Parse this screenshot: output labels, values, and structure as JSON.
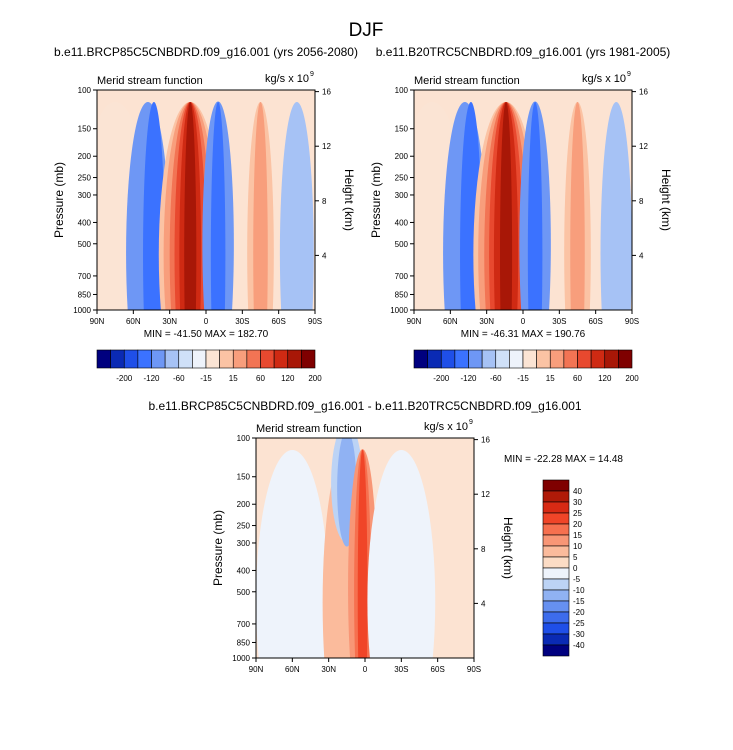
{
  "figure": {
    "title": "DJF"
  },
  "chart_data": [
    {
      "type": "heatmap",
      "id": "panel-future",
      "title": "b.e11.BRCP85C5CNBDRD.f09_g16.001 (yrs 2056-2080)",
      "subtitle": "Merid stream function",
      "units_base": "kg/s x 10",
      "units_exp": "9",
      "ylabel": "Pressure (mb)",
      "ylabel_right": "Height (km)",
      "x_ticks": [
        "90N",
        "60N",
        "30N",
        "0",
        "30S",
        "60S",
        "90S"
      ],
      "y_ticks": [
        100,
        150,
        200,
        250,
        300,
        400,
        500,
        700,
        850,
        1000
      ],
      "y_ticks_right": [
        16,
        12,
        8,
        4
      ],
      "ylim": [
        1000,
        100
      ],
      "stats": "MIN = -41.50  MAX = 182.70",
      "min": -41.5,
      "max": 182.7,
      "cells": [
        {
          "lat": 75,
          "half": 30,
          "p": 550,
          "level": 8
        },
        {
          "lat": 48,
          "half": 18,
          "p": 550,
          "level": 4
        },
        {
          "lat": 43,
          "half": 9,
          "p": 560,
          "level": 3
        },
        {
          "lat": 13,
          "half": 26,
          "p": 560,
          "level": 9
        },
        {
          "lat": 13,
          "half": 22,
          "p": 560,
          "level": 10
        },
        {
          "lat": 13,
          "half": 17,
          "p": 560,
          "level": 11
        },
        {
          "lat": 13,
          "half": 13,
          "p": 560,
          "level": 12
        },
        {
          "lat": 13,
          "half": 9,
          "p": 560,
          "level": 13
        },
        {
          "lat": 13,
          "half": 5,
          "p": 560,
          "level": 14
        },
        {
          "lat": -10,
          "half": 13,
          "p": 500,
          "level": 4
        },
        {
          "lat": -10,
          "half": 6,
          "p": 560,
          "level": 3
        },
        {
          "lat": -45,
          "half": 11,
          "p": 550,
          "level": 9
        },
        {
          "lat": -45,
          "half": 6,
          "p": 550,
          "level": 10
        },
        {
          "lat": -75,
          "half": 14,
          "p": 550,
          "level": 5
        }
      ]
    },
    {
      "type": "heatmap",
      "id": "panel-historical",
      "title": "b.e11.B20TRC5CNBDRD.f09_g16.001 (yrs 1981-2005)",
      "subtitle": "Merid stream function",
      "units_base": "kg/s x 10",
      "units_exp": "9",
      "ylabel": "Pressure (mb)",
      "ylabel_right": "Height (km)",
      "x_ticks": [
        "90N",
        "60N",
        "30N",
        "0",
        "30S",
        "60S",
        "90S"
      ],
      "y_ticks": [
        100,
        150,
        200,
        250,
        300,
        400,
        500,
        700,
        850,
        1000
      ],
      "y_ticks_right": [
        16,
        12,
        8,
        4
      ],
      "ylim": [
        1000,
        100
      ],
      "stats": "MIN = -46.31  MAX = 190.76",
      "min": -46.31,
      "max": 190.76,
      "cells": [
        {
          "lat": 75,
          "half": 30,
          "p": 550,
          "level": 8
        },
        {
          "lat": 48,
          "half": 18,
          "p": 550,
          "level": 4
        },
        {
          "lat": 43,
          "half": 9,
          "p": 560,
          "level": 3
        },
        {
          "lat": 14,
          "half": 27,
          "p": 560,
          "level": 9
        },
        {
          "lat": 14,
          "half": 23,
          "p": 560,
          "level": 10
        },
        {
          "lat": 14,
          "half": 18,
          "p": 560,
          "level": 11
        },
        {
          "lat": 14,
          "half": 14,
          "p": 560,
          "level": 12
        },
        {
          "lat": 14,
          "half": 10,
          "p": 560,
          "level": 13
        },
        {
          "lat": 14,
          "half": 5,
          "p": 560,
          "level": 14
        },
        {
          "lat": -10,
          "half": 13,
          "p": 500,
          "level": 4
        },
        {
          "lat": -10,
          "half": 6,
          "p": 560,
          "level": 3
        },
        {
          "lat": -45,
          "half": 11,
          "p": 550,
          "level": 9
        },
        {
          "lat": -45,
          "half": 6,
          "p": 550,
          "level": 10
        },
        {
          "lat": -77,
          "half": 13,
          "p": 550,
          "level": 5
        }
      ]
    },
    {
      "type": "heatmap",
      "id": "panel-difference",
      "title": "b.e11.BRCP85C5CNBDRD.f09_g16.001 - b.e11.B20TRC5CNBDRD.f09_g16.001",
      "subtitle": "Merid stream function",
      "units_base": "kg/s x 10",
      "units_exp": "9",
      "ylabel": "Pressure (mb)",
      "ylabel_right": "Height (km)",
      "x_ticks": [
        "90N",
        "60N",
        "30N",
        "0",
        "30S",
        "60S",
        "90S"
      ],
      "y_ticks": [
        100,
        150,
        200,
        250,
        300,
        400,
        500,
        700,
        850,
        1000
      ],
      "y_ticks_right": [
        16,
        12,
        8,
        4
      ],
      "ylim": [
        1000,
        100
      ],
      "stats": "MIN = -22.28  MAX =  14.48",
      "min": -22.28,
      "max": 14.48,
      "cells": [
        {
          "lat": 60,
          "half": 30,
          "p": 550,
          "level": 8
        },
        {
          "lat": 15,
          "half": 20,
          "p": 560,
          "level": 6
        },
        {
          "lat": 15,
          "half": 13,
          "p": 160,
          "level": 9
        },
        {
          "lat": 15,
          "half": 8,
          "p": 170,
          "level": 10
        },
        {
          "lat": 2,
          "half": 12,
          "p": 480,
          "level": 5
        },
        {
          "lat": 2,
          "half": 7,
          "p": 500,
          "level": 4
        },
        {
          "lat": 2,
          "half": 4,
          "p": 520,
          "level": 3
        },
        {
          "lat": -30,
          "half": 28,
          "p": 550,
          "level": 8
        }
      ]
    }
  ],
  "colorbar_main": {
    "labels": [
      "-200",
      "-120",
      "-60",
      "-15",
      "15",
      "60",
      "120",
      "200"
    ],
    "colors": [
      "#00007f",
      "#0a2ab4",
      "#1f4fe8",
      "#3b72ff",
      "#6e97f5",
      "#a6c2f5",
      "#cfe0f8",
      "#eef3fb",
      "#fbe4d4",
      "#fbc3a4",
      "#f89e7c",
      "#f27454",
      "#e8492f",
      "#cf2a13",
      "#a81707",
      "#7f0000"
    ]
  },
  "colorbar_diff": {
    "labels": [
      "40",
      "30",
      "25",
      "20",
      "15",
      "10",
      "5",
      "0",
      "-5",
      "-10",
      "-15",
      "-20",
      "-25",
      "-30",
      "-40"
    ],
    "colors": [
      "#7f0000",
      "#b01a08",
      "#d82a14",
      "#f04528",
      "#f6704f",
      "#f89676",
      "#fbbb9c",
      "#fcdcc5",
      "#eef3fb",
      "#bcd3f5",
      "#90b2f3",
      "#6690f0",
      "#3d6cec",
      "#1f4fe8",
      "#0a2ab4",
      "#00007f"
    ]
  },
  "colors": {
    "background": "#ffffff",
    "land": "#dcdcdc",
    "base_bg": "#fce3d2"
  }
}
